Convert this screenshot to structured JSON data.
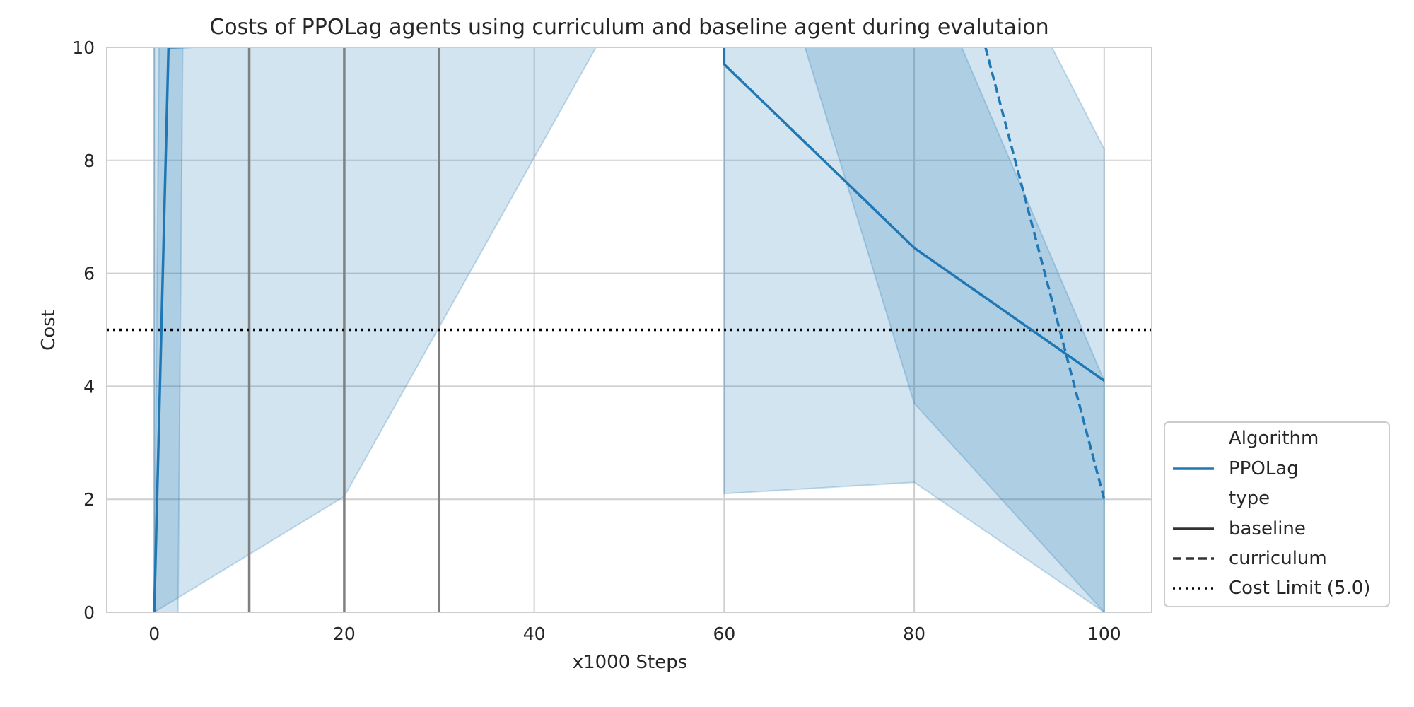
{
  "chart_data": {
    "type": "line",
    "title": "Costs of PPOLag agents using curriculum and baseline agent during evalutaion",
    "xlabel": "x1000 Steps",
    "ylabel": "Cost",
    "xlim": [
      -5,
      105
    ],
    "ylim": [
      0,
      10
    ],
    "xticks": [
      0,
      20,
      40,
      60,
      80,
      100
    ],
    "yticks": [
      0,
      2,
      4,
      6,
      8,
      10
    ],
    "grid": true,
    "legend_position": "lower-right-outside",
    "colors": {
      "series": "#1f77b4",
      "band": "#1f77b4",
      "vertical_lines": "#808080",
      "cost_limit": "#000000",
      "grid": "#cfcfcf",
      "spine": "#cccccc",
      "legend_style_line": "#333333"
    },
    "series": [
      {
        "name": "PPOLag",
        "type_label": "baseline",
        "style": "solid",
        "points": [
          [
            0,
            0
          ],
          [
            1.5,
            10
          ],
          [
            60,
            10.2
          ],
          [
            60,
            9.7
          ],
          [
            80,
            6.45
          ],
          [
            100,
            4.1
          ]
        ],
        "bands": [
          {
            "x": [
              0,
              0.5,
              3,
              2.5,
              0
            ],
            "y": [
              0,
              10,
              10,
              0,
              0
            ]
          },
          {
            "x": [
              60,
              60,
              80,
              100,
              100,
              94.5,
              58
            ],
            "y": [
              10,
              2.1,
              2.3,
              0,
              8.2,
              10,
              10
            ]
          }
        ]
      },
      {
        "name": "PPOLag",
        "type_label": "curriculum",
        "style": "dashed",
        "points": [
          [
            87.5,
            10
          ],
          [
            100,
            2
          ]
        ],
        "bands": [
          {
            "x": [
              0,
              20,
              46.5,
              0
            ],
            "y": [
              0,
              2.05,
              10,
              10
            ]
          },
          {
            "x": [
              68.5,
              80,
              100,
              100,
              85
            ],
            "y": [
              10,
              3.7,
              0,
              4.1,
              10
            ]
          }
        ]
      }
    ],
    "vertical_lines": [
      10,
      20,
      30
    ],
    "cost_limit": 5.0,
    "legend": {
      "header_algorithm": "Algorithm",
      "algorithm_entry": "PPOLag",
      "header_type": "type",
      "type_entries": [
        "baseline",
        "curriculum"
      ],
      "limit_entry": "Cost Limit (5.0)"
    }
  }
}
